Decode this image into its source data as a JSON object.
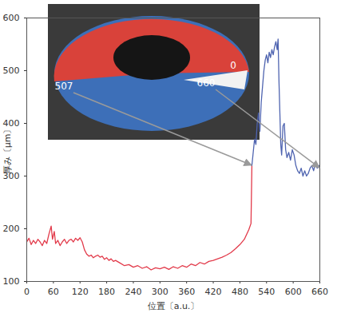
{
  "chart_data": {
    "type": "line",
    "x_label": "位置〔a.u.〕",
    "y_label": "厚み〔μm〕",
    "xlim": [
      0,
      660
    ],
    "ylim": [
      100,
      600
    ],
    "xticks": [
      0,
      60,
      120,
      180,
      240,
      300,
      360,
      420,
      480,
      540,
      600,
      660
    ],
    "yticks": [
      100,
      200,
      300,
      400,
      500,
      600
    ],
    "grid": false,
    "series": [
      {
        "color": "#e23a4a",
        "x": [
          0,
          5,
          10,
          15,
          20,
          25,
          30,
          35,
          40,
          45,
          50,
          55,
          58,
          62,
          65,
          70,
          75,
          80,
          85,
          90,
          95,
          100,
          105,
          110,
          115,
          120,
          125,
          130,
          135,
          140,
          145,
          150,
          155,
          160,
          165,
          170,
          175,
          180,
          185,
          190,
          195,
          200,
          210,
          220,
          230,
          240,
          250,
          260,
          270,
          280,
          290,
          300,
          310,
          320,
          330,
          340,
          350,
          360,
          370,
          380,
          390,
          400,
          410,
          420,
          430,
          440,
          450,
          460,
          470,
          480,
          490,
          500,
          505,
          507
        ],
        "values": [
          175,
          182,
          170,
          178,
          172,
          180,
          175,
          168,
          178,
          172,
          190,
          205,
          180,
          195,
          172,
          178,
          168,
          175,
          180,
          172,
          178,
          180,
          175,
          182,
          178,
          183,
          175,
          160,
          152,
          148,
          150,
          145,
          148,
          150,
          146,
          148,
          142,
          145,
          140,
          143,
          138,
          140,
          135,
          130,
          132,
          127,
          130,
          125,
          128,
          122,
          126,
          124,
          127,
          123,
          128,
          125,
          130,
          127,
          133,
          130,
          136,
          133,
          138,
          140,
          143,
          146,
          150,
          155,
          162,
          170,
          180,
          198,
          210,
          320
        ]
      },
      {
        "color": "#4f64b0",
        "x": [
          507,
          510,
          513,
          516,
          519,
          522,
          525,
          528,
          531,
          534,
          537,
          540,
          543,
          546,
          549,
          552,
          555,
          558,
          561,
          564,
          566,
          568,
          570,
          572,
          574,
          577,
          580,
          583,
          586,
          590,
          594,
          598,
          602,
          606,
          610,
          614,
          618,
          622,
          626,
          630,
          634,
          638,
          642,
          646,
          650,
          654,
          658,
          660
        ],
        "values": [
          320,
          345,
          370,
          360,
          400,
          420,
          385,
          440,
          470,
          500,
          520,
          530,
          515,
          535,
          525,
          540,
          530,
          545,
          555,
          540,
          560,
          480,
          420,
          360,
          340,
          395,
          400,
          350,
          335,
          345,
          330,
          350,
          340,
          320,
          310,
          305,
          315,
          300,
          310,
          300,
          305,
          315,
          320,
          310,
          325,
          315,
          320,
          315
        ]
      }
    ],
    "annotations": [
      {
        "text": "507",
        "x": 507
      },
      {
        "text": "0"
      },
      {
        "text": "660",
        "x": 660
      }
    ]
  }
}
